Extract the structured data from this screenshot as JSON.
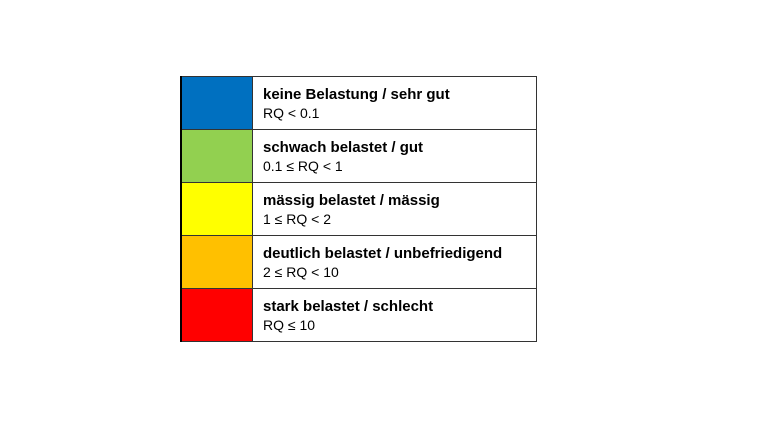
{
  "legend": {
    "rows": [
      {
        "title": "keine Belastung / sehr gut",
        "range": "RQ < 0.1",
        "color": "#0070C0"
      },
      {
        "title": "schwach belastet / gut",
        "range": "0.1 ≤ RQ < 1",
        "color": "#92D050"
      },
      {
        "title": "mässig belastet / mässig",
        "range": "1 ≤ RQ < 2",
        "color": "#FFFF00"
      },
      {
        "title": "deutlich belastet / unbefriedigend",
        "range": "2 ≤ RQ < 10",
        "color": "#FFC000"
      },
      {
        "title": "stark belastet / schlecht",
        "range": "RQ ≤ 10",
        "color": "#FF0000"
      }
    ]
  }
}
